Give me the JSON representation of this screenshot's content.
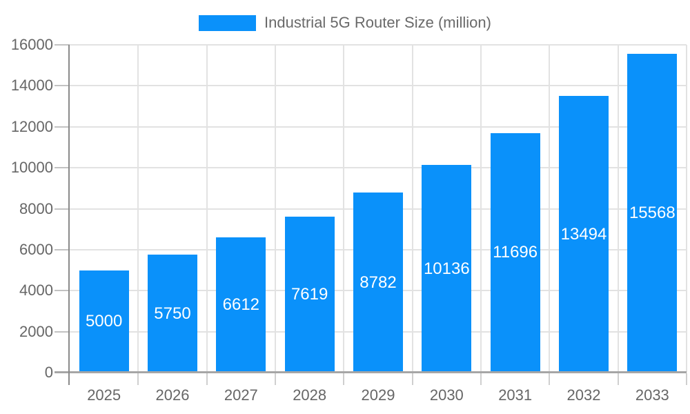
{
  "chart_data": {
    "type": "bar",
    "title": "Industrial 5G Router Size (million)",
    "categories": [
      "2025",
      "2026",
      "2027",
      "2028",
      "2029",
      "2030",
      "2031",
      "2032",
      "2033"
    ],
    "values": [
      5000,
      5750,
      6612,
      7619,
      8782,
      10136,
      11696,
      13494,
      15568
    ],
    "value_labels": [
      "5000",
      "5750",
      "6612",
      "7619",
      "8782",
      "10136",
      "11696",
      "13494",
      "15568"
    ],
    "xlabel": "",
    "ylabel": "",
    "ylim": [
      0,
      16000
    ],
    "ytick_step": 2000,
    "ytick_labels": [
      "0",
      "2000",
      "4000",
      "6000",
      "8000",
      "10000",
      "12000",
      "14000",
      "16000"
    ],
    "grid": "horizontal and vertical light gray gridlines",
    "legend_position": "top-center",
    "legend_entries": [
      "Industrial 5G Router Size (million)"
    ],
    "colors": {
      "bar": "#0A91FA",
      "bar_label_text": "#FFFFFF",
      "axis_text": "#666666",
      "legend_text": "#696969",
      "gridline": "#E2E2E2",
      "x_axis_line": "#A6A6A6",
      "y_axis_line": "#8A8A8A",
      "tick": "#C2C2C2",
      "background": "#FFFFFF"
    }
  }
}
